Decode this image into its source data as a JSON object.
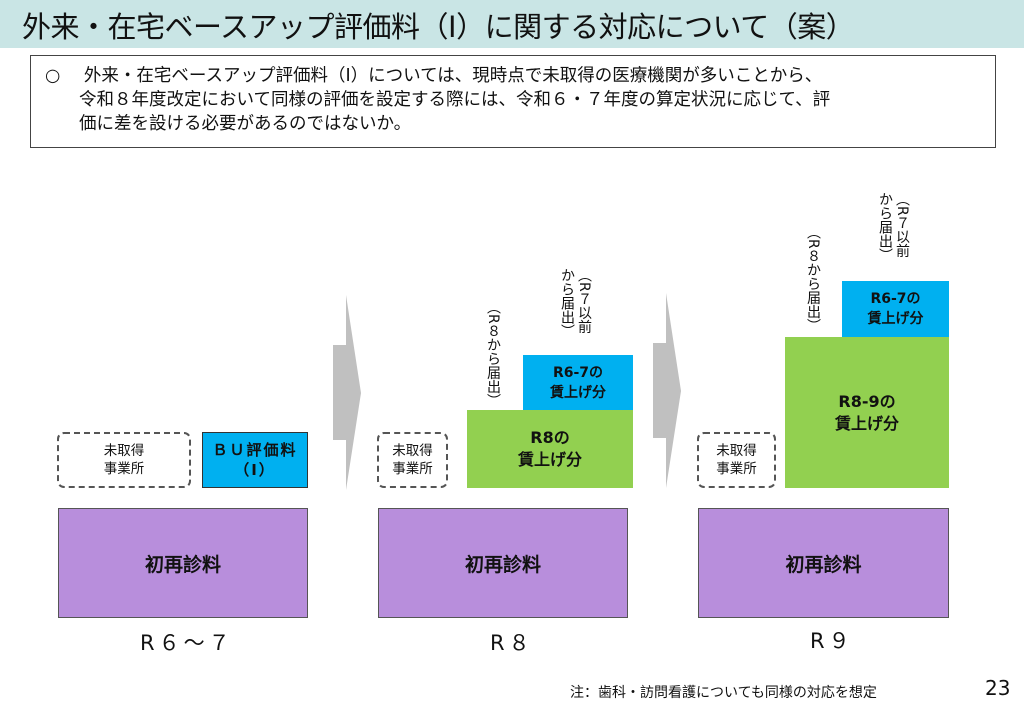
{
  "title": "外来・在宅ベースアップ評価料（Ⅰ）に関する対応について（案）",
  "note": {
    "bullet": "○",
    "line1": "外来・在宅ベースアップ評価料（Ⅰ）については、現時点で未取得の医療機関が多いことから、",
    "line2": "令和８年度改定において同様の評価を設定する際には、令和６・７年度の算定状況に応じて、評",
    "line3": "価に差を設ける必要があるのではないか。"
  },
  "columns": [
    {
      "period": "R６〜７",
      "unacquired": "未取得\n事業所",
      "bu_label": "ＢＵ評価料\n（Ⅰ）",
      "base": "初再診料"
    },
    {
      "period": "R８",
      "unacquired": "未取得\n事業所",
      "green": "R8の\n賃上げ分",
      "blue": "R6-7の\n賃上げ分",
      "new_note": "（R８から届出）",
      "old_note": "（R７以前\nから届出）",
      "base": "初再診料"
    },
    {
      "period": "R９",
      "unacquired": "未取得\n事業所",
      "green": "R8-9の\n賃上げ分",
      "blue": "R6-7の\n賃上げ分",
      "new_note": "（R８から届出）",
      "old_note": "（R７以前\nから届出）",
      "base": "初再診料"
    }
  ],
  "colors": {
    "header": "#c9e5e5",
    "blue": "#00b0f0",
    "green": "#92d050",
    "purple": "#b88edc",
    "arrow": "#c0c0c0"
  },
  "footer": "注：歯科・訪問看護についても同様の対応を想定",
  "page_number": "23"
}
